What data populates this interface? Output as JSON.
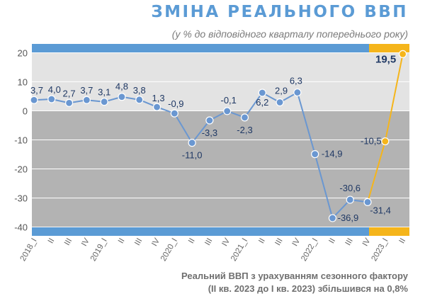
{
  "chart_data": {
    "type": "line",
    "title": "ЗМІНА РЕАЛЬНОГО ВВП",
    "subtitle": "(у % до відповідного кварталу попереднього року)",
    "ylim": [
      -43,
      23
    ],
    "yticks": [
      20,
      10,
      0,
      -10,
      -20,
      -30,
      -40
    ],
    "categories": [
      "2018_I",
      "II",
      "III",
      "IV",
      "2019_I",
      "II",
      "III",
      "IV",
      "2020_I",
      "II",
      "III",
      "IV",
      "2021_I",
      "II",
      "III",
      "IV",
      "2022_I",
      "II",
      "III",
      "IV",
      "2023_I",
      "II"
    ],
    "series": [
      {
        "values": [
          3.7,
          4.0,
          2.7,
          3.7,
          3.1,
          4.8,
          3.8,
          1.3,
          -0.9,
          -11.0,
          -3.3,
          -0.1,
          -2.3,
          6.2,
          2.9,
          6.3,
          -14.9,
          -36.9,
          -30.6,
          -31.4,
          -10.5,
          19.5
        ],
        "labels": [
          "3,7",
          "4,0",
          "2,7",
          "3,7",
          "3,1",
          "4,8",
          "3,8",
          "1,3",
          "-0,9",
          "-11,0",
          "-3,3",
          "-0,1",
          "-2,3",
          "6,2",
          "2,9",
          "6,3",
          "-14,9",
          "-36,9",
          "-30,6",
          "-31,4",
          "-10,5",
          "19,5"
        ],
        "color": "#6a97d1",
        "highlight_color": "#f5b51b",
        "highlight_from_index": 19
      }
    ],
    "grid": true,
    "colors": {
      "positive_band": "#e3e3e3",
      "negative_band": "#b3b3b3",
      "edge_band": "#5b9bd5",
      "highlight_band": "#f5b51b"
    }
  },
  "note": {
    "line1": "Реальний ВВП з урахуванням сезонного фактору",
    "line2": "(II кв. 2023 до I кв. 2023) збільшився на 0,8%"
  }
}
